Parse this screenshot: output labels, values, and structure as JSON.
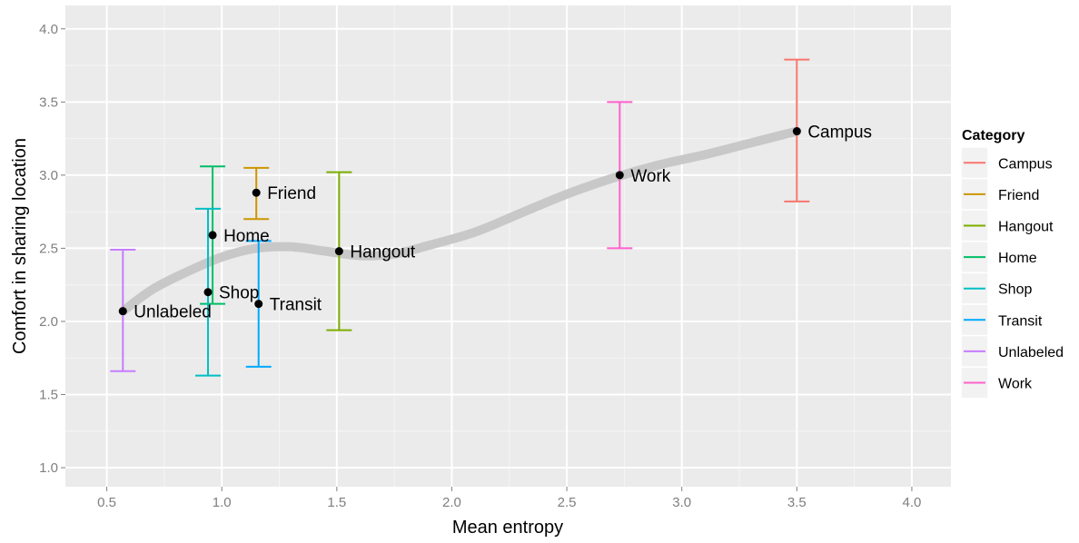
{
  "chart_data": {
    "type": "scatter",
    "xlabel": "Mean entropy",
    "ylabel": "Comfort in sharing location",
    "xlim": [
      0.32,
      4.17
    ],
    "ylim": [
      0.87,
      4.16
    ],
    "xticks": [
      0.5,
      1.0,
      1.5,
      2.0,
      2.5,
      3.0,
      3.5,
      4.0
    ],
    "xtick_labels": [
      "0.5",
      "1.0",
      "1.5",
      "2.0",
      "2.5",
      "3.0",
      "3.5",
      "4.0"
    ],
    "yticks": [
      1.0,
      1.5,
      2.0,
      2.5,
      3.0,
      3.5,
      4.0
    ],
    "ytick_labels": [
      "1.0",
      "1.5",
      "2.0",
      "2.5",
      "3.0",
      "3.5",
      "4.0"
    ],
    "grid": true,
    "legend": {
      "title": "Category",
      "placement": "right",
      "entries": [
        "Campus",
        "Friend",
        "Hangout",
        "Home",
        "Shop",
        "Transit",
        "Unlabeled",
        "Work"
      ]
    },
    "points": [
      {
        "label": "Campus",
        "x": 3.5,
        "y": 3.3,
        "ymin": 2.82,
        "ymax": 3.79,
        "color": "#F8766D"
      },
      {
        "label": "Friend",
        "x": 1.15,
        "y": 2.88,
        "ymin": 2.7,
        "ymax": 3.05,
        "color": "#CD9600"
      },
      {
        "label": "Hangout",
        "x": 1.51,
        "y": 2.48,
        "ymin": 1.94,
        "ymax": 3.02,
        "color": "#7CAE00"
      },
      {
        "label": "Home",
        "x": 0.96,
        "y": 2.59,
        "ymin": 2.12,
        "ymax": 3.06,
        "color": "#00BE67"
      },
      {
        "label": "Shop",
        "x": 0.94,
        "y": 2.2,
        "ymin": 1.63,
        "ymax": 2.77,
        "color": "#00BFC4"
      },
      {
        "label": "Transit",
        "x": 1.16,
        "y": 2.12,
        "ymin": 1.69,
        "ymax": 2.55,
        "color": "#00A9FF"
      },
      {
        "label": "Unlabeled",
        "x": 0.57,
        "y": 2.07,
        "ymin": 1.66,
        "ymax": 2.49,
        "color": "#C77CFF"
      },
      {
        "label": "Work",
        "x": 2.73,
        "y": 3.0,
        "ymin": 2.5,
        "ymax": 3.5,
        "color": "#FF61CC"
      }
    ],
    "smooth": {
      "x": [
        0.57,
        0.7,
        0.85,
        1.0,
        1.15,
        1.3,
        1.45,
        1.6,
        1.75,
        1.9,
        2.1,
        2.3,
        2.5,
        2.7,
        2.9,
        3.1,
        3.3,
        3.5
      ],
      "y": [
        2.07,
        2.22,
        2.34,
        2.44,
        2.5,
        2.51,
        2.48,
        2.45,
        2.46,
        2.52,
        2.61,
        2.74,
        2.87,
        2.98,
        3.07,
        3.14,
        3.22,
        3.3
      ],
      "color": "#C8C8C8"
    }
  }
}
